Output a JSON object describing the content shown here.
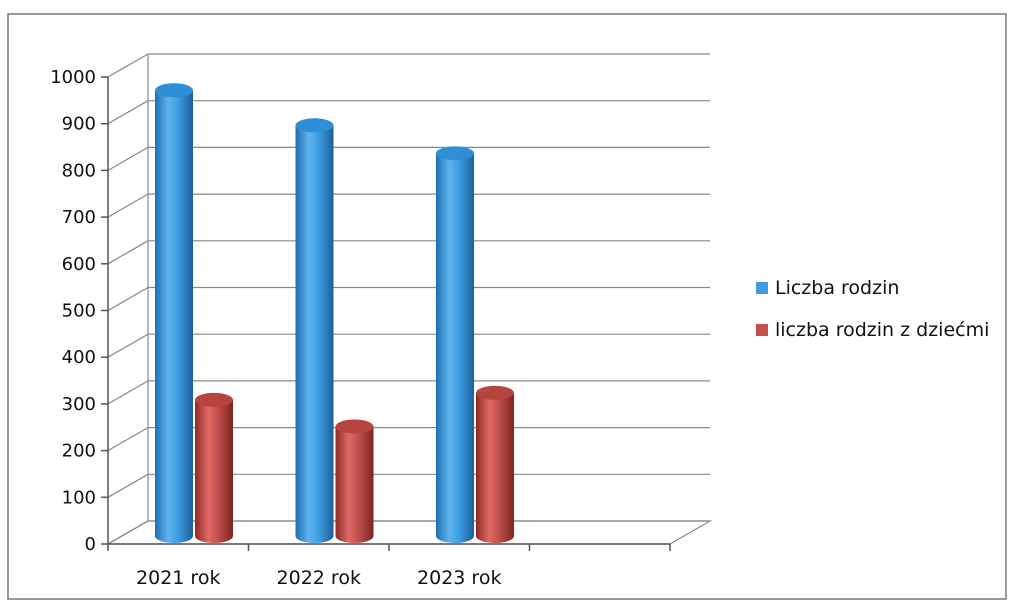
{
  "chart_data": {
    "type": "bar",
    "style": "3d-cylinder",
    "categories": [
      "2021 rok",
      "2022 rok",
      "2023 rok"
    ],
    "series": [
      {
        "name": "Liczba rodzin",
        "values": [
          978,
          903,
          843
        ],
        "color": "#3e9ee3"
      },
      {
        "name": "liczba rodzin z dziećmi",
        "values": [
          315,
          258,
          330
        ],
        "color": "#c0504d"
      }
    ],
    "ylim": [
      0,
      1000
    ],
    "yticks": [
      0,
      100,
      200,
      300,
      400,
      500,
      600,
      700,
      800,
      900,
      1000
    ],
    "grid": true,
    "legend_position": "right"
  }
}
